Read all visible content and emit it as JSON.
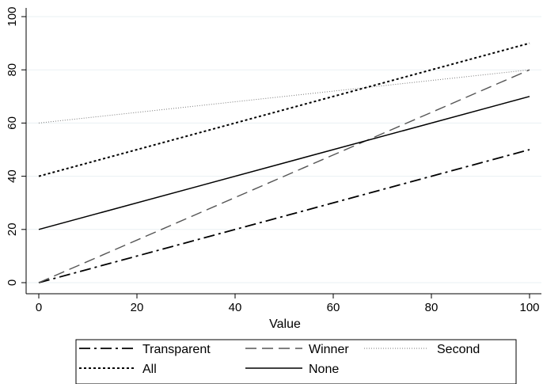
{
  "chart_data": {
    "type": "line",
    "xlabel": "Value",
    "ylabel": "",
    "xlim": [
      0,
      100
    ],
    "ylim": [
      0,
      100
    ],
    "x_ticks": [
      0,
      20,
      40,
      60,
      80,
      100
    ],
    "y_ticks": [
      0,
      20,
      40,
      60,
      80,
      100
    ],
    "grid": "horizontal",
    "legend_position": "bottom",
    "series": [
      {
        "name": "Transparent",
        "x": [
          0,
          100
        ],
        "y": [
          0,
          50
        ],
        "style": "dash-dot",
        "color": "#000000"
      },
      {
        "name": "Winner",
        "x": [
          0,
          100
        ],
        "y": [
          0,
          80
        ],
        "style": "dashed",
        "color": "#555555"
      },
      {
        "name": "Second",
        "x": [
          0,
          100
        ],
        "y": [
          60,
          80
        ],
        "style": "fine-dotted",
        "color": "#777777"
      },
      {
        "name": "All",
        "x": [
          0,
          100
        ],
        "y": [
          40,
          90
        ],
        "style": "dotted",
        "color": "#000000"
      },
      {
        "name": "None",
        "x": [
          0,
          100
        ],
        "y": [
          20,
          70
        ],
        "style": "solid",
        "color": "#000000"
      }
    ]
  }
}
